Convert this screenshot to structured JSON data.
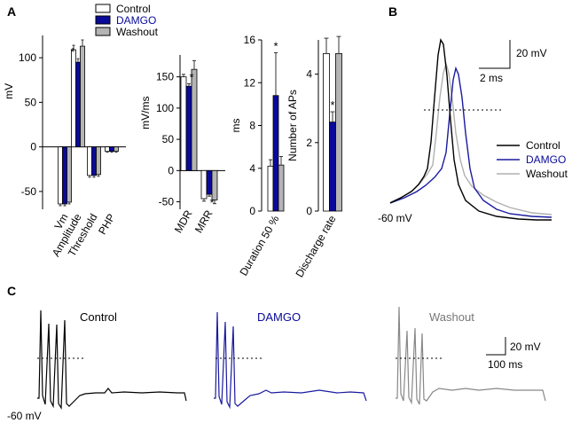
{
  "panel_labels": {
    "a": "A",
    "b": "B",
    "c": "C"
  },
  "colors": {
    "control": "#ffffff",
    "damgo": "#0a0a9a",
    "washout": "#b4b4b4",
    "control_trace": "#000000",
    "damgo_trace": "#1a1aa0",
    "washout_trace": "#b0b0b0",
    "washout_c_trace": "#888888"
  },
  "legend": {
    "control": "Control",
    "damgo": "DAMGO",
    "washout": "Washout"
  },
  "chart_data": [
    {
      "id": "A1",
      "type": "bar",
      "ylabel": "mV",
      "ylim": [
        -70,
        125
      ],
      "yticks": [
        -50,
        0,
        50,
        100
      ],
      "ytick_labels": [
        "-50",
        "0",
        "50",
        "100"
      ],
      "categories": [
        "Vm",
        "Amplitude",
        "Threshold",
        "PHP"
      ],
      "series": [
        {
          "name": "Control",
          "values": [
            -64,
            109,
            -32,
            -5
          ],
          "errors": [
            2,
            5,
            2,
            1
          ]
        },
        {
          "name": "DAMGO",
          "values": [
            -64,
            95,
            -32,
            -5
          ],
          "errors": [
            2,
            4,
            2,
            1
          ]
        },
        {
          "name": "Washout",
          "values": [
            -62,
            113,
            -31,
            -5
          ],
          "errors": [
            2,
            7,
            2,
            1
          ]
        }
      ],
      "significance": [
        {
          "category": "Amplitude",
          "series": "DAMGO",
          "mark": "*"
        }
      ]
    },
    {
      "id": "A2",
      "type": "bar",
      "ylabel": "mV/ms",
      "ylim": [
        -62,
        185
      ],
      "yticks": [
        -50,
        0,
        50,
        100,
        150
      ],
      "ytick_labels": [
        "-50",
        "0",
        "50",
        "100",
        "150"
      ],
      "categories": [
        "MDR",
        "MRR"
      ],
      "series": [
        {
          "name": "Control",
          "values": [
            150,
            -45
          ],
          "errors": [
            4,
            4
          ]
        },
        {
          "name": "DAMGO",
          "values": [
            135,
            -38
          ],
          "errors": [
            4,
            3
          ]
        },
        {
          "name": "Washout",
          "values": [
            162,
            -47
          ],
          "errors": [
            14,
            6
          ]
        }
      ],
      "significance": [
        {
          "category": "MDR",
          "series": "DAMGO",
          "mark": "*"
        },
        {
          "category": "MRR",
          "series": "DAMGO",
          "mark": "*"
        }
      ]
    },
    {
      "id": "A3",
      "type": "bar",
      "ylabel": "ms",
      "ylim": [
        0,
        16
      ],
      "yticks": [
        0,
        4,
        8,
        12,
        16
      ],
      "ytick_labels": [
        "0",
        "4",
        "8",
        "12",
        "16"
      ],
      "categories": [
        "Duration 50 %"
      ],
      "series": [
        {
          "name": "Control",
          "values": [
            4.2
          ],
          "errors": [
            0.6
          ]
        },
        {
          "name": "DAMGO",
          "values": [
            10.8
          ],
          "errors": [
            4.0
          ]
        },
        {
          "name": "Washout",
          "values": [
            4.3
          ],
          "errors": [
            0.8
          ]
        }
      ],
      "significance": [
        {
          "category": "Duration 50 %",
          "series": "DAMGO",
          "mark": "*"
        }
      ]
    },
    {
      "id": "A4",
      "type": "bar",
      "ylabel": "Number of APs",
      "ylim": [
        0,
        5
      ],
      "yticks": [
        0,
        2,
        4
      ],
      "ytick_labels": [
        "0",
        "2",
        "4"
      ],
      "categories": [
        "Discharge rate"
      ],
      "series": [
        {
          "name": "Control",
          "values": [
            4.6
          ],
          "errors": [
            0.45
          ]
        },
        {
          "name": "DAMGO",
          "values": [
            2.6
          ],
          "errors": [
            0.3
          ]
        },
        {
          "name": "Washout",
          "values": [
            4.6
          ],
          "errors": [
            0.5
          ]
        }
      ],
      "significance": [
        {
          "category": "Discharge rate",
          "series": "DAMGO",
          "mark": "*"
        }
      ]
    }
  ],
  "panel_b": {
    "scale_voltage": "20 mV",
    "scale_time": "2 ms",
    "baseline_label": "-60 mV",
    "legend": [
      "Control",
      "DAMGO",
      "Washout"
    ]
  },
  "panel_c": {
    "traces": [
      {
        "name": "Control",
        "spikes": 4
      },
      {
        "name": "DAMGO",
        "spikes": 3
      },
      {
        "name": "Washout",
        "spikes": 4
      }
    ],
    "scale_voltage": "20 mV",
    "scale_time": "100 ms",
    "baseline_label": "-60 mV"
  }
}
